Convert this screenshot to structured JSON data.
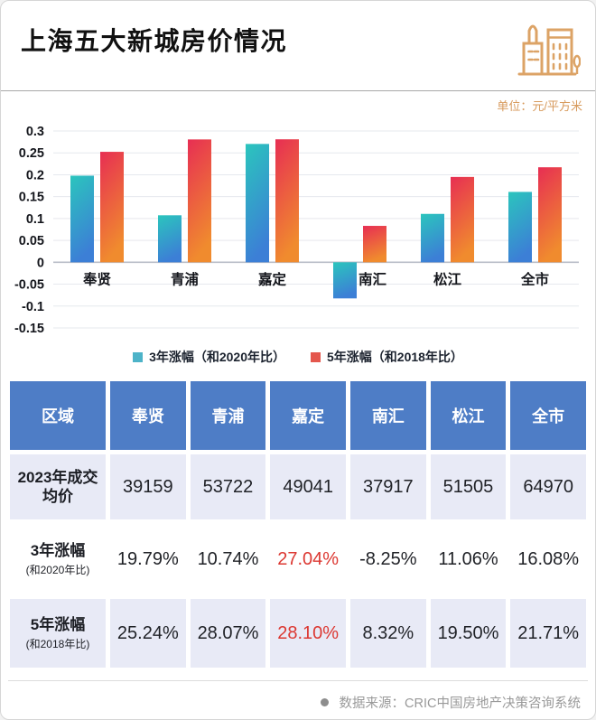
{
  "header": {
    "title": "上海五大新城房价情况",
    "unit_label": "单位：元/平方米"
  },
  "chart_data": {
    "type": "bar",
    "title": "上海五大新城房价情况",
    "categories": [
      "奉贤",
      "青浦",
      "嘉定",
      "南汇",
      "松江",
      "全市"
    ],
    "series": [
      {
        "name": "3年涨幅（和2020年比）",
        "values": [
          0.1979,
          0.1074,
          0.2704,
          -0.0825,
          0.1106,
          0.1608
        ],
        "gradient_top": "#2bc5bd",
        "gradient_bottom": "#3c7fd6",
        "legend_color": "#4db3c8"
      },
      {
        "name": "5年涨幅（和2018年比）",
        "values": [
          0.2524,
          0.2807,
          0.281,
          0.0832,
          0.195,
          0.2171
        ],
        "gradient_top": "#e72e53",
        "gradient_bottom": "#f08b2e",
        "legend_color": "#e4574d"
      }
    ],
    "ylim": [
      -0.15,
      0.3
    ],
    "ytick_step": 0.05,
    "grid": true,
    "legend_position": "bottom"
  },
  "table": {
    "header": [
      "区域",
      "奉贤",
      "青浦",
      "嘉定",
      "南汇",
      "松江",
      "全市"
    ],
    "rows": [
      {
        "label_main": "2023年成交均价",
        "label_sub": "",
        "values": [
          "39159",
          "53722",
          "49041",
          "37917",
          "51505",
          "64970"
        ],
        "highlight_col": -1,
        "shaded": true
      },
      {
        "label_main": "3年涨幅",
        "label_sub": "(和2020年比)",
        "values": [
          "19.79%",
          "10.74%",
          "27.04%",
          "-8.25%",
          "11.06%",
          "16.08%"
        ],
        "highlight_col": 2,
        "shaded": false
      },
      {
        "label_main": "5年涨幅",
        "label_sub": "(和2018年比)",
        "values": [
          "25.24%",
          "28.07%",
          "28.10%",
          "8.32%",
          "19.50%",
          "21.71%"
        ],
        "highlight_col": 2,
        "shaded": true
      }
    ]
  },
  "footer": {
    "source": "数据来源：CRIC中国房地产决策咨询系统"
  },
  "colors": {
    "header_blue": "#4e7dc6",
    "row_shaded": "#e8eaf6",
    "highlight_red": "#dc3832",
    "accent_orange": "#d79a5c",
    "icon_orange": "#dca366",
    "axis_text": "#14161c",
    "gridline": "#e6e8ee",
    "zero_line": "#b9bdc7",
    "source_gray": "#999999"
  }
}
